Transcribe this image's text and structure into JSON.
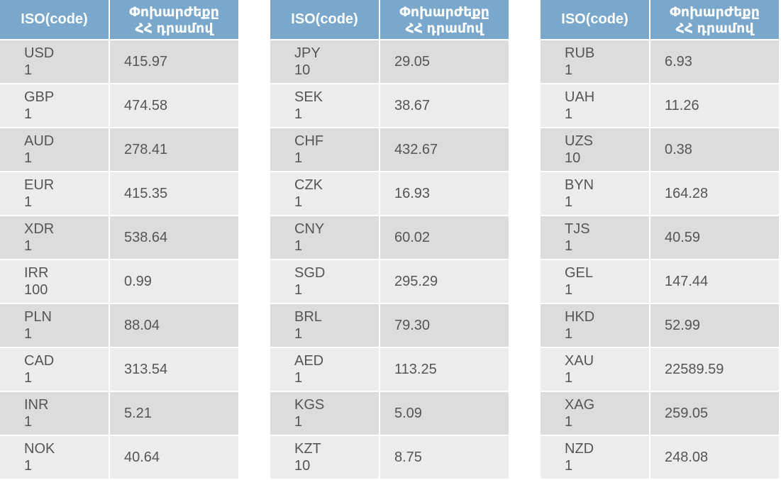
{
  "headers": {
    "iso": "ISO(code)",
    "rate_line1": "Փոխարժեքը",
    "rate_line2": "ՀՀ դրամով"
  },
  "tables": [
    {
      "rows": [
        {
          "code": "USD",
          "unit": "1",
          "rate": "415.97"
        },
        {
          "code": "GBP",
          "unit": "1",
          "rate": "474.58"
        },
        {
          "code": "AUD",
          "unit": "1",
          "rate": "278.41"
        },
        {
          "code": "EUR",
          "unit": "1",
          "rate": "415.35"
        },
        {
          "code": "XDR",
          "unit": "1",
          "rate": "538.64"
        },
        {
          "code": "IRR",
          "unit": "100",
          "rate": "0.99"
        },
        {
          "code": "PLN",
          "unit": "1",
          "rate": "88.04"
        },
        {
          "code": "CAD",
          "unit": "1",
          "rate": "313.54"
        },
        {
          "code": "INR",
          "unit": "1",
          "rate": "5.21"
        },
        {
          "code": "NOK",
          "unit": "1",
          "rate": "40.64"
        }
      ]
    },
    {
      "rows": [
        {
          "code": "JPY",
          "unit": "10",
          "rate": "29.05"
        },
        {
          "code": "SEK",
          "unit": "1",
          "rate": "38.67"
        },
        {
          "code": "CHF",
          "unit": "1",
          "rate": "432.67"
        },
        {
          "code": "CZK",
          "unit": "1",
          "rate": "16.93"
        },
        {
          "code": "CNY",
          "unit": "1",
          "rate": "60.02"
        },
        {
          "code": "SGD",
          "unit": "1",
          "rate": "295.29"
        },
        {
          "code": "BRL",
          "unit": "1",
          "rate": "79.30"
        },
        {
          "code": "AED",
          "unit": "1",
          "rate": "113.25"
        },
        {
          "code": "KGS",
          "unit": "1",
          "rate": "5.09"
        },
        {
          "code": "KZT",
          "unit": "10",
          "rate": "8.75"
        }
      ]
    },
    {
      "rows": [
        {
          "code": "RUB",
          "unit": "1",
          "rate": "6.93"
        },
        {
          "code": "UAH",
          "unit": "1",
          "rate": "11.26"
        },
        {
          "code": "UZS",
          "unit": "10",
          "rate": "0.38"
        },
        {
          "code": "BYN",
          "unit": "1",
          "rate": "164.28"
        },
        {
          "code": "TJS",
          "unit": "1",
          "rate": "40.59"
        },
        {
          "code": "GEL",
          "unit": "1",
          "rate": "147.44"
        },
        {
          "code": "HKD",
          "unit": "1",
          "rate": "52.99"
        },
        {
          "code": "XAU",
          "unit": "1",
          "rate": "22589.59"
        },
        {
          "code": "XAG",
          "unit": "1",
          "rate": "259.05"
        },
        {
          "code": "NZD",
          "unit": "1",
          "rate": "248.08"
        }
      ]
    }
  ],
  "colors": {
    "header_bg": "#7aa7cc",
    "header_text": "#ffffff",
    "row_odd_bg": "#dcdcdc",
    "row_even_bg": "#ececec",
    "cell_text": "#555555"
  }
}
